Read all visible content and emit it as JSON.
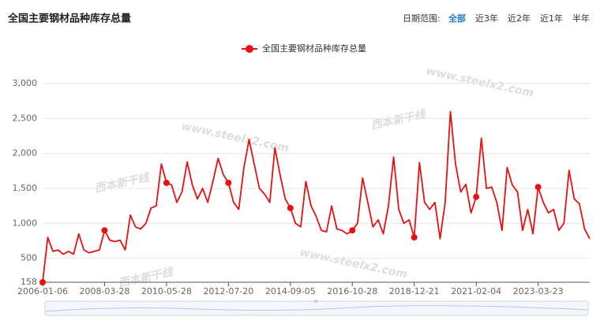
{
  "chart_data": {
    "type": "line",
    "title": "全国主要钢材品种库存总量",
    "range_label": "日期范围:",
    "range_options": [
      "全部",
      "近3年",
      "近2年",
      "近1年",
      "半年"
    ],
    "selected_range": 0,
    "watermarks": [
      "www.steelx2.com",
      "西本新干线"
    ],
    "categories": [
      "2006-01-06",
      null,
      null,
      null,
      null,
      null,
      null,
      null,
      null,
      null,
      null,
      null,
      "2008-03-28",
      null,
      null,
      null,
      null,
      null,
      null,
      null,
      null,
      null,
      null,
      null,
      "2010-05-28",
      null,
      null,
      null,
      null,
      null,
      null,
      null,
      null,
      null,
      null,
      null,
      "2012-07-20",
      null,
      null,
      null,
      null,
      null,
      null,
      null,
      null,
      null,
      null,
      null,
      "2014-09-05",
      null,
      null,
      null,
      null,
      null,
      null,
      null,
      null,
      null,
      null,
      null,
      "2016-10-28",
      null,
      null,
      null,
      null,
      null,
      null,
      null,
      null,
      null,
      null,
      null,
      "2018-12-21",
      null,
      null,
      null,
      null,
      null,
      null,
      null,
      null,
      null,
      null,
      null,
      "2021-02-04",
      null,
      null,
      null,
      null,
      null,
      null,
      null,
      null,
      null,
      null,
      null,
      "2023-03-23",
      null,
      null,
      null,
      null,
      null,
      null,
      null,
      null,
      null,
      null
    ],
    "series": [
      {
        "name": "全国主要钢材品种库存总量",
        "color": "#e81010",
        "values": [
          158,
          800,
          600,
          620,
          560,
          600,
          560,
          850,
          620,
          580,
          600,
          620,
          900,
          760,
          740,
          760,
          620,
          1120,
          950,
          920,
          1000,
          1220,
          1250,
          1850,
          1580,
          1550,
          1300,
          1450,
          1880,
          1550,
          1350,
          1500,
          1300,
          1600,
          1930,
          1700,
          1580,
          1300,
          1200,
          1800,
          2200,
          1850,
          1500,
          1420,
          1300,
          2080,
          1700,
          1350,
          1220,
          1000,
          950,
          1600,
          1250,
          1100,
          900,
          880,
          1250,
          920,
          900,
          850,
          900,
          1000,
          1650,
          1300,
          950,
          1050,
          850,
          1250,
          1950,
          1200,
          1000,
          1050,
          800,
          1870,
          1300,
          1200,
          1300,
          780,
          1300,
          2600,
          1850,
          1450,
          1560,
          1150,
          1380,
          2220,
          1500,
          1520,
          1300,
          900,
          1800,
          1550,
          1450,
          900,
          1200,
          850,
          1520,
          1300,
          1150,
          1200,
          900,
          1000,
          1760,
          1350,
          1280,
          920,
          780
        ]
      }
    ],
    "ylim": [
      158,
      3000
    ],
    "yticks": [
      158,
      500,
      {
        "value": 1000,
        "label": "1,000"
      },
      {
        "value": 1500,
        "label": "1,500"
      },
      {
        "value": 2000,
        "label": "2,000"
      },
      {
        "value": 2500,
        "label": "2,500"
      },
      {
        "value": 3000,
        "label": "3,000"
      }
    ],
    "grid": true
  }
}
